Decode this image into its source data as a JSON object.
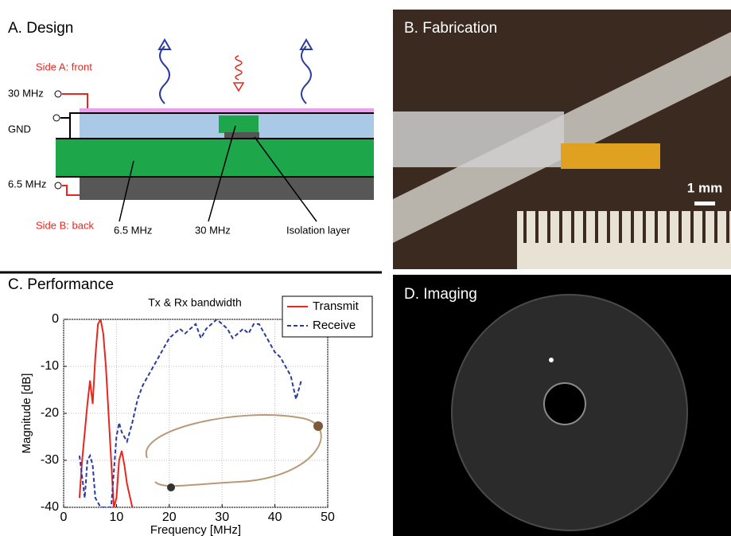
{
  "panel_a": {
    "title": "A. Design",
    "side_a": "Side A: front",
    "port_30": "30 MHz",
    "port_gnd": "GND",
    "port_65": "6.5 MHz",
    "side_b": "Side B: back",
    "callout_65": "6.5 MHz",
    "callout_30": "30 MHz",
    "callout_iso": "Isolation layer"
  },
  "panel_b": {
    "title": "B. Fabrication",
    "scale_label": "1 mm"
  },
  "panel_c": {
    "title": "C. Performance"
  },
  "panel_d": {
    "title": "D. Imaging"
  },
  "chart_data": {
    "type": "line",
    "title": "Tx & Rx bandwidth",
    "x_label": "Frequency [MHz]",
    "y_label": "Magnitude [dB]",
    "xlim": [
      0,
      50
    ],
    "ylim": [
      -40,
      0
    ],
    "xticks": [
      0,
      10,
      20,
      30,
      40,
      50
    ],
    "yticks": [
      -40,
      -30,
      -20,
      -10,
      0
    ],
    "grid": true,
    "legend": "upper right",
    "series": [
      {
        "name": "Transmit",
        "color": "#e8261c",
        "dash": false,
        "x": [
          3,
          3.5,
          4,
          4.5,
          5,
          5.5,
          6,
          6.5,
          7,
          7.5,
          8,
          8.5,
          9,
          9.5,
          10,
          10.5,
          11,
          11.5,
          12,
          13
        ],
        "values": [
          -38,
          -30,
          -24,
          -18,
          -13,
          -18,
          -8,
          -1,
          0,
          -3,
          -10,
          -20,
          -30,
          -40,
          -38,
          -30,
          -28,
          -31,
          -35,
          -40
        ]
      },
      {
        "name": "Receive",
        "color": "#2b3c9e",
        "dash": true,
        "x": [
          3,
          4,
          4.5,
          5,
          5.5,
          6,
          7,
          8,
          9,
          10,
          10.5,
          11,
          12,
          13,
          14,
          15,
          16,
          17,
          18,
          19,
          20,
          21,
          22,
          23,
          24,
          25,
          26,
          27,
          28,
          29,
          30,
          31,
          32,
          33,
          34,
          35,
          36,
          37,
          38,
          39,
          40,
          41,
          42,
          43,
          44,
          45
        ],
        "values": [
          -29,
          -38,
          -30,
          -29,
          -31,
          -38,
          -40,
          -40,
          -40,
          -25,
          -22,
          -24,
          -26,
          -22,
          -17,
          -14,
          -12,
          -10,
          -8,
          -6,
          -4,
          -3,
          -2,
          -3,
          -2,
          -1,
          -4,
          -2,
          -1,
          0,
          -1,
          -2,
          -4,
          -3,
          -2,
          -3,
          -1,
          -1,
          -3,
          -5,
          -7,
          -8,
          -10,
          -12,
          -17,
          -13
        ]
      }
    ]
  }
}
